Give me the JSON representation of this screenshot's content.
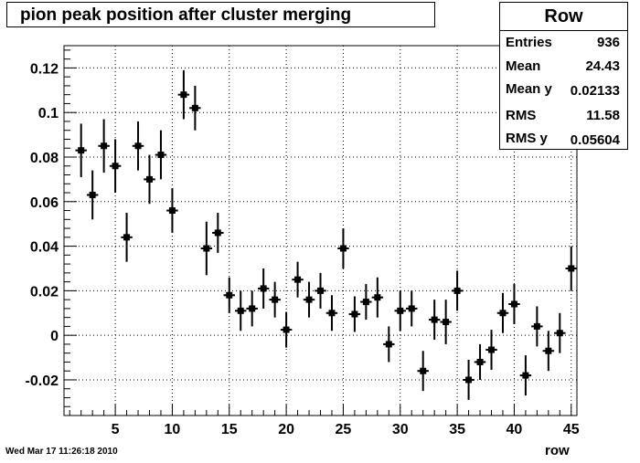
{
  "chart_data": {
    "type": "scatter",
    "title": "pion peak position after cluster merging",
    "xlabel": "row",
    "ylabel": "",
    "xlim": [
      0.5,
      45.5
    ],
    "ylim": [
      -0.036,
      0.13
    ],
    "x_ticks": [
      5,
      10,
      15,
      20,
      25,
      30,
      35,
      40,
      45
    ],
    "y_ticks": [
      -0.02,
      0,
      0.02,
      0.04,
      0.06,
      0.08,
      0.1,
      0.12
    ],
    "y_tick_labels": [
      "-0.02",
      "0",
      "0.02",
      "0.04",
      "0.06",
      "0.08",
      "0.1",
      "0.12"
    ],
    "grid": true,
    "legend": "none",
    "series": [
      {
        "x": [
          2,
          3,
          4,
          5,
          6,
          7,
          8,
          9,
          10,
          11,
          12,
          13,
          14,
          15,
          16,
          17,
          18,
          19,
          20,
          21,
          22,
          23,
          24,
          25,
          26,
          27,
          28,
          29,
          30,
          31,
          32,
          33,
          34,
          35,
          36,
          37,
          38,
          39,
          40,
          41,
          42,
          43,
          44,
          45
        ],
        "y": [
          0.083,
          0.063,
          0.085,
          0.076,
          0.044,
          0.085,
          0.07,
          0.081,
          0.056,
          0.108,
          0.102,
          0.039,
          0.046,
          0.018,
          0.011,
          0.012,
          0.021,
          0.016,
          0.0025,
          0.025,
          0.016,
          0.02,
          0.01,
          0.039,
          0.0095,
          0.015,
          0.017,
          -0.004,
          0.011,
          0.012,
          -0.016,
          0.007,
          0.006,
          0.02,
          -0.02,
          -0.012,
          -0.0065,
          0.01,
          0.014,
          -0.018,
          0.004,
          -0.007,
          0.001,
          0.03
        ],
        "yerr": [
          0.012,
          0.011,
          0.012,
          0.012,
          0.011,
          0.011,
          0.011,
          0.011,
          0.01,
          0.011,
          0.01,
          0.012,
          0.009,
          0.008,
          0.009,
          0.008,
          0.009,
          0.008,
          0.008,
          0.008,
          0.008,
          0.008,
          0.008,
          0.009,
          0.008,
          0.008,
          0.009,
          0.008,
          0.009,
          0.008,
          0.009,
          0.009,
          0.01,
          0.009,
          0.009,
          0.008,
          0.009,
          0.009,
          0.009,
          0.009,
          0.009,
          0.009,
          0.009,
          0.01
        ]
      }
    ]
  },
  "stats": {
    "name": "Row",
    "entries_label": "Entries",
    "entries_value": "936",
    "mean_label": "Mean",
    "mean_value": "24.43",
    "meany_label": "Mean y",
    "meany_value": "0.02133",
    "rms_label": "RMS",
    "rms_value": "11.58",
    "rmsy_label": "RMS y",
    "rmsy_value": "0.05604"
  },
  "footer": {
    "timestamp": "Wed Mar 17 11:26:18 2010"
  }
}
